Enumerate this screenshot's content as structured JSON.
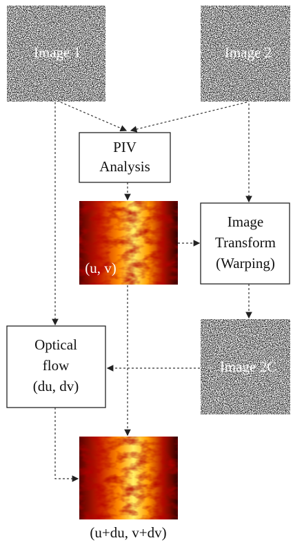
{
  "nodes": [
    {
      "lines": [
        "Image 1"
      ]
    },
    {
      "lines": [
        "Image 2"
      ]
    },
    {
      "lines": [
        "PIV",
        "Analysis"
      ]
    },
    {
      "lines": [
        "(u, v)"
      ]
    },
    {
      "lines": [
        "Image",
        "Transform",
        "(Warping)"
      ]
    },
    {
      "lines": [
        "Optical",
        "flow",
        "(du, dv)"
      ]
    },
    {
      "lines": [
        "Image 2C"
      ]
    },
    {
      "lines": [
        "(u+du, v+dv)"
      ]
    }
  ]
}
